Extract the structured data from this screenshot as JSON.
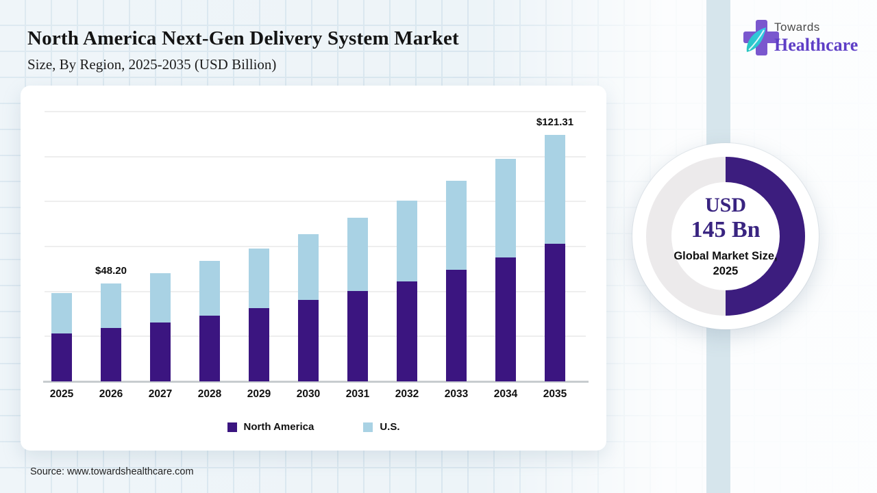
{
  "header": {
    "title": "North America Next-Gen Delivery System Market",
    "subtitle": "Size, By Region, 2025-2035 (USD Billion)"
  },
  "logo": {
    "line1": "Towards",
    "line2": "Healthcare"
  },
  "icons": {
    "logo_cross": "medical-cross-icon",
    "logo_leaf": "leaf-icon"
  },
  "colors": {
    "bar_north_america": "#3b1580",
    "bar_us": "#a9d2e4",
    "donut_fill": "#3c1d7e",
    "donut_track": "#eceaeb",
    "accent_band": "#d6e5ec",
    "brand_purple": "#5e3ec6"
  },
  "chart_data": [
    {
      "type": "bar",
      "stacked": true,
      "title": "North America Next-Gen Delivery System Market Size, By Region, 2025-2035 (USD Billion)",
      "categories": [
        "2025",
        "2026",
        "2027",
        "2028",
        "2029",
        "2030",
        "2031",
        "2032",
        "2033",
        "2034",
        "2035"
      ],
      "series": [
        {
          "name": "North America",
          "color": "#3b1580",
          "values": [
            23.6,
            26.2,
            28.9,
            32.3,
            36.0,
            40.2,
            44.6,
            49.2,
            55.0,
            61.1,
            67.8
          ]
        },
        {
          "name": "U.S.",
          "color": "#a9d2e4",
          "values": [
            19.9,
            22.0,
            24.5,
            26.9,
            29.5,
            32.4,
            35.8,
            39.9,
            43.7,
            48.3,
            53.5
          ]
        }
      ],
      "totals": [
        43.5,
        48.2,
        53.4,
        59.2,
        65.5,
        72.6,
        80.4,
        89.1,
        98.7,
        109.4,
        121.31
      ],
      "data_labels": [
        {
          "category": "2026",
          "text": "$48.20"
        },
        {
          "category": "2035",
          "text": "$121.31"
        }
      ],
      "xlabel": "",
      "ylabel": "",
      "ylim": [
        0,
        133
      ],
      "grid": "horizontal",
      "gridline_count": 6,
      "legend_position": "bottom"
    },
    {
      "type": "donut",
      "filled_fraction": 0.5,
      "fill_color": "#3c1d7e",
      "track_color": "#eceaeb",
      "center_lines": [
        "USD",
        "145 Bn",
        "Global Market Size,",
        "2025"
      ]
    }
  ],
  "donut": {
    "value_line1": "USD",
    "value_line2": "145 Bn",
    "label_line1": "Global Market Size,",
    "label_line2": "2025"
  },
  "source": {
    "text": "Source: www.towardshealthcare.com"
  }
}
